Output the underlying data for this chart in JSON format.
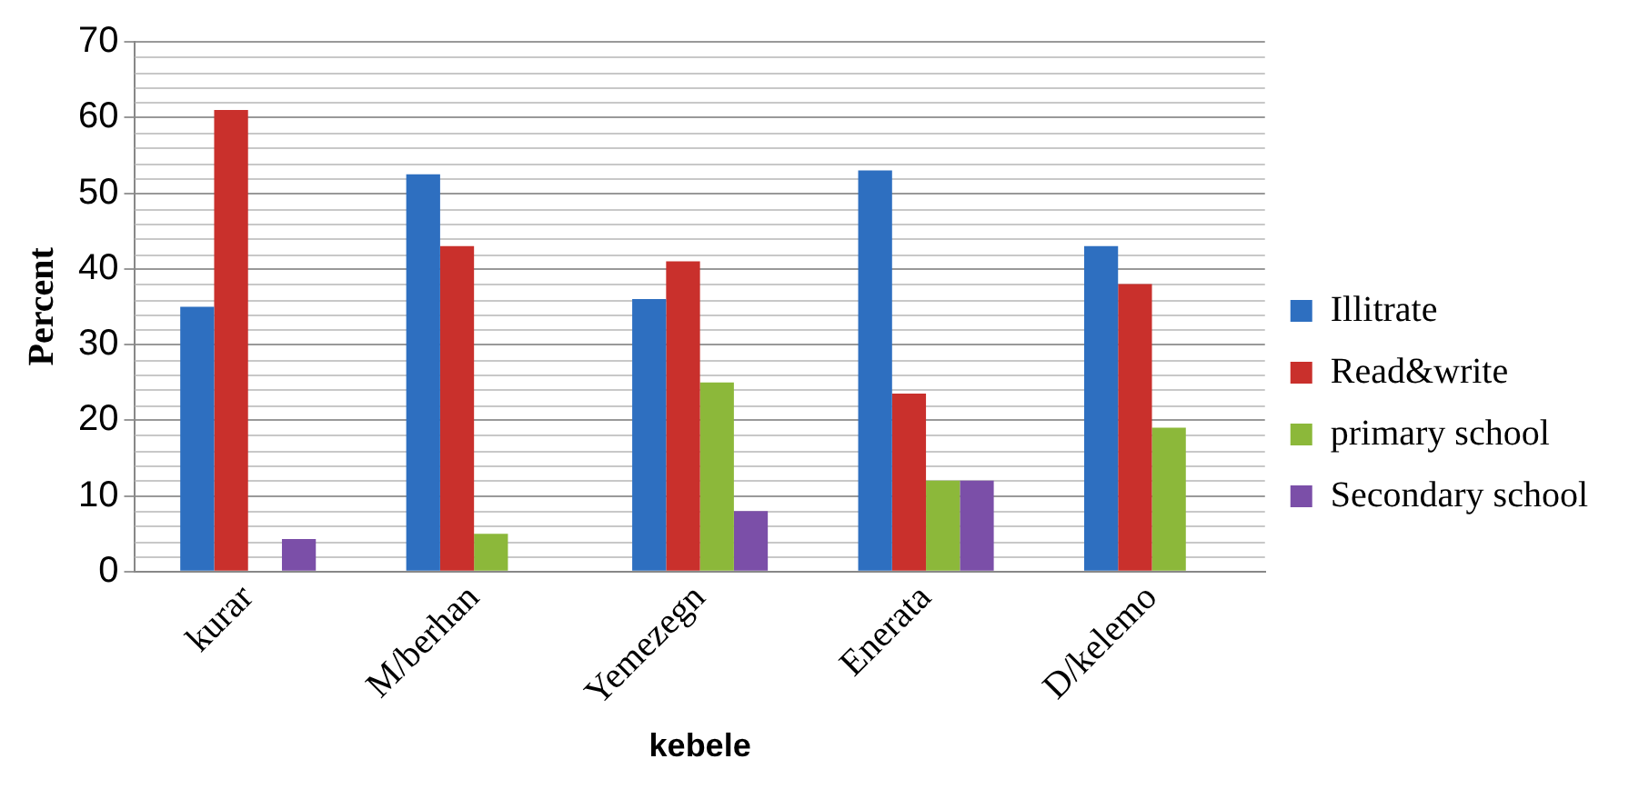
{
  "chart_data": {
    "type": "bar",
    "xlabel": "kebele",
    "ylabel": "Percent",
    "categories": [
      "kurar",
      "M/berhan",
      "Yemezegn",
      "Enerata",
      "D/kelemo"
    ],
    "series": [
      {
        "name": "Illitrate",
        "color": "#2e6fc0",
        "values": [
          35,
          52.5,
          36,
          53,
          43
        ]
      },
      {
        "name": "Read&write",
        "color": "#c9302c",
        "values": [
          61,
          43,
          41,
          23.5,
          38
        ]
      },
      {
        "name": "primary school",
        "color": "#8cb83a",
        "values": [
          0,
          5,
          25,
          12,
          19
        ]
      },
      {
        "name": "Secondary school",
        "color": "#7b4fa8",
        "values": [
          4.3,
          0,
          8,
          12,
          0
        ]
      }
    ],
    "ylim": [
      0,
      70
    ],
    "yticks": [
      0,
      10,
      20,
      30,
      40,
      50,
      60,
      70
    ],
    "grid": "y",
    "legend": "right"
  }
}
